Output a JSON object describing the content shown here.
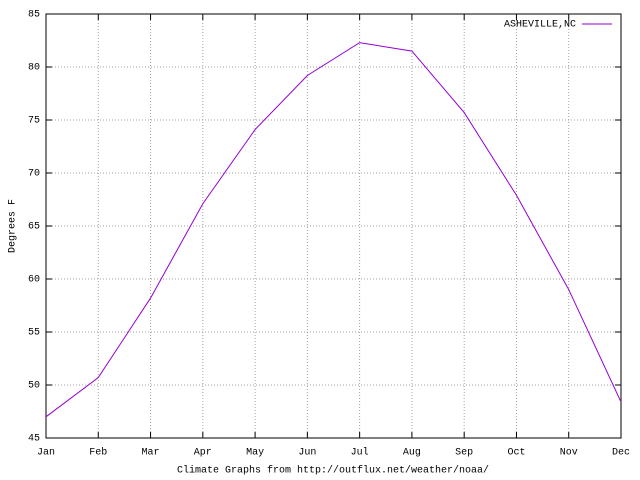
{
  "chart_data": {
    "type": "line",
    "x_label": "Climate Graphs from http://outflux.net/weather/noaa/",
    "y_label": "Degrees F",
    "categories": [
      "Jan",
      "Feb",
      "Mar",
      "Apr",
      "May",
      "Jun",
      "Jul",
      "Aug",
      "Sep",
      "Oct",
      "Nov",
      "Dec"
    ],
    "series": [
      {
        "name": "ASHEVILLE,NC",
        "color": "#9400d3",
        "values": [
          47.0,
          50.7,
          58.2,
          67.1,
          74.1,
          79.2,
          82.3,
          81.5,
          75.7,
          67.9,
          59.0,
          48.4
        ]
      }
    ],
    "ylim": [
      45,
      85
    ],
    "yticks": [
      45,
      50,
      55,
      60,
      65,
      70,
      75,
      80,
      85
    ],
    "grid": true,
    "legend": "top-right"
  }
}
